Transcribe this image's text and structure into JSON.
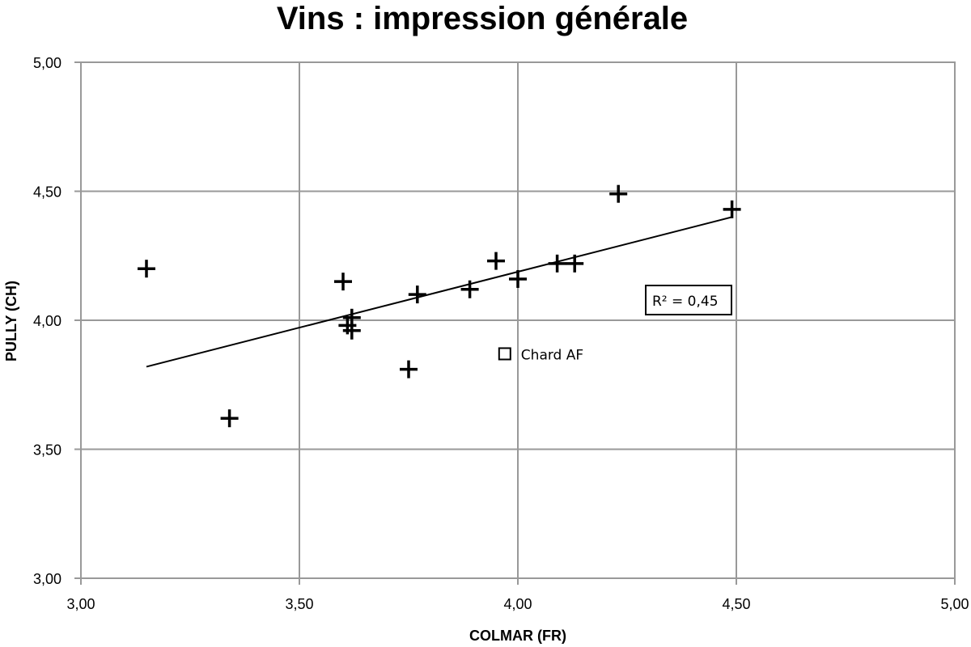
{
  "chart_data": {
    "type": "scatter",
    "title": "Vins : impression générale",
    "xlabel": "COLMAR (FR)",
    "ylabel": "PULLY (CH)",
    "xlim": [
      3.0,
      5.0
    ],
    "ylim": [
      3.0,
      5.0
    ],
    "x_ticks": [
      3.0,
      3.5,
      4.0,
      4.5,
      5.0
    ],
    "y_ticks": [
      3.0,
      3.5,
      4.0,
      4.5,
      5.0
    ],
    "x_tick_labels": [
      "3,00",
      "3,50",
      "4,00",
      "4,50",
      "5,00"
    ],
    "y_tick_labels": [
      "3,00",
      "3,50",
      "4,00",
      "4,50",
      "5,00"
    ],
    "grid": true,
    "series": [
      {
        "marker": "plus",
        "points": [
          {
            "x": 3.15,
            "y": 4.2
          },
          {
            "x": 3.34,
            "y": 3.62
          },
          {
            "x": 3.6,
            "y": 4.15
          },
          {
            "x": 3.61,
            "y": 3.98
          },
          {
            "x": 3.62,
            "y": 4.01
          },
          {
            "x": 3.62,
            "y": 3.96
          },
          {
            "x": 3.75,
            "y": 3.81
          },
          {
            "x": 3.77,
            "y": 4.1
          },
          {
            "x": 3.89,
            "y": 4.12
          },
          {
            "x": 3.95,
            "y": 4.23
          },
          {
            "x": 4.0,
            "y": 4.16
          },
          {
            "x": 4.09,
            "y": 4.22
          },
          {
            "x": 4.13,
            "y": 4.22
          },
          {
            "x": 4.23,
            "y": 4.49
          },
          {
            "x": 4.49,
            "y": 4.43
          }
        ]
      },
      {
        "marker": "square",
        "points": [
          {
            "x": 3.97,
            "y": 3.87,
            "label": "Chard AF"
          }
        ]
      }
    ],
    "trendline": {
      "type": "linear",
      "x_start": 3.15,
      "y_start": 3.82,
      "x_end": 4.49,
      "y_end": 4.4,
      "r2_label": "R² = 0,45",
      "r2": 0.45
    }
  }
}
